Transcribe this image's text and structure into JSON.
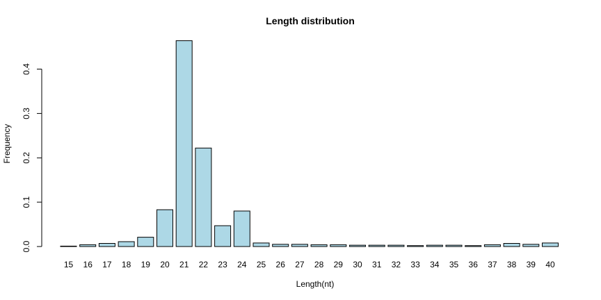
{
  "chart_data": {
    "type": "bar",
    "title": "Length distribution",
    "xlabel": "Length(nt)",
    "ylabel": "Frequency",
    "ylim": [
      0,
      0.45
    ],
    "yticks": [
      "0.0",
      "0.1",
      "0.2",
      "0.3",
      "0.4"
    ],
    "ytick_values": [
      0.0,
      0.1,
      0.2,
      0.3,
      0.4
    ],
    "categories": [
      "15",
      "16",
      "17",
      "18",
      "19",
      "20",
      "21",
      "22",
      "23",
      "24",
      "25",
      "26",
      "27",
      "28",
      "29",
      "30",
      "31",
      "32",
      "33",
      "34",
      "35",
      "36",
      "37",
      "38",
      "39",
      "40"
    ],
    "values": [
      0.001,
      0.004,
      0.007,
      0.011,
      0.021,
      0.083,
      0.464,
      0.222,
      0.047,
      0.08,
      0.008,
      0.005,
      0.005,
      0.004,
      0.004,
      0.003,
      0.003,
      0.003,
      0.002,
      0.003,
      0.003,
      0.002,
      0.004,
      0.007,
      0.005,
      0.008
    ],
    "bar_color": "#add8e6",
    "grid": false
  }
}
